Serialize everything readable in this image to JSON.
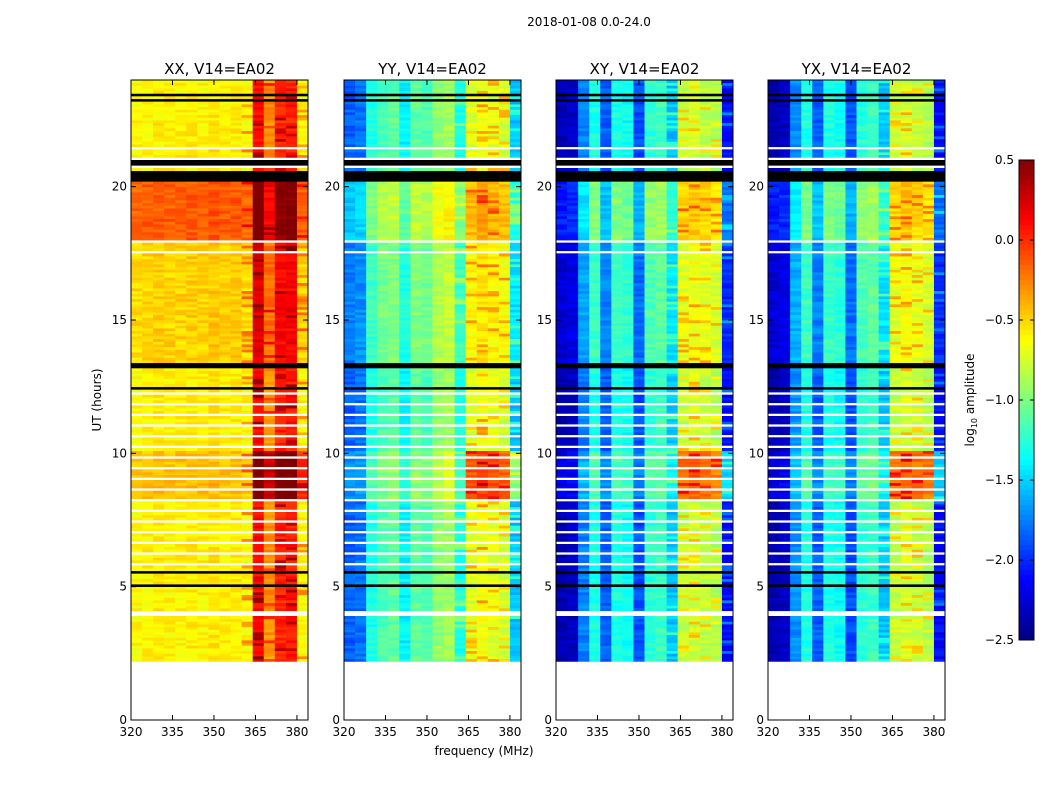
{
  "chart_data": {
    "type": "heatmap",
    "suptitle": "2018-01-08 0.0-24.0",
    "xlabel": "frequency (MHz)",
    "ylabel": "UT (hours)",
    "xlim": [
      320,
      384
    ],
    "ylim": [
      0,
      24
    ],
    "xticks": [
      320,
      335,
      350,
      365,
      380
    ],
    "yticks": [
      0,
      5,
      10,
      15,
      20
    ],
    "data_time_range": [
      2.2,
      24
    ],
    "time_bin_hours": 0.1,
    "freq_bins_mhz": [
      320,
      324,
      328,
      332,
      336,
      340,
      344,
      348,
      352,
      356,
      360,
      364,
      368,
      372,
      376,
      380
    ],
    "panels": [
      {
        "title": "XX, V14=EA02",
        "profile": [
          -0.62,
          -0.6,
          -0.58,
          -0.6,
          -0.6,
          -0.58,
          -0.6,
          -0.56,
          -0.6,
          -0.58,
          -0.62,
          0.12,
          -0.3,
          0.02,
          0.05,
          -0.6
        ]
      },
      {
        "title": "YY, V14=EA02",
        "profile": [
          -1.85,
          -1.8,
          -1.3,
          -1.15,
          -1.1,
          -1.4,
          -1.1,
          -1.15,
          -0.95,
          -0.9,
          -1.3,
          -0.72,
          -0.65,
          -0.7,
          -0.75,
          -1.55
        ]
      },
      {
        "title": "XY, V14=EA02",
        "profile": [
          -2.35,
          -2.3,
          -1.75,
          -1.3,
          -1.85,
          -1.3,
          -1.35,
          -1.9,
          -1.25,
          -1.2,
          -1.55,
          -0.8,
          -0.75,
          -0.8,
          -0.85,
          -2.1
        ]
      },
      {
        "title": "YX, V14=EA02",
        "profile": [
          -2.35,
          -2.3,
          -1.7,
          -1.3,
          -1.85,
          -1.3,
          -1.35,
          -1.9,
          -1.25,
          -1.2,
          -1.55,
          -0.8,
          -0.75,
          -0.8,
          -0.85,
          -2.1
        ]
      }
    ],
    "time_offsets": [
      {
        "start": 21.4,
        "end": 24,
        "offset": 0.0
      },
      {
        "start": 18.0,
        "end": 20.2,
        "offset": 0.3
      },
      {
        "start": 13.4,
        "end": 18.0,
        "offset": 0.1
      },
      {
        "start": 10.1,
        "end": 13.2,
        "offset": 0.0
      },
      {
        "start": 8.3,
        "end": 10.1,
        "offset": 0.15
      },
      {
        "start": 2.2,
        "end": 8.3,
        "offset": 0.0
      }
    ],
    "rfi_boost": {
      "start": 8.3,
      "end": 10.1,
      "min_freq": 364,
      "offset": 0.45
    },
    "flagged_black": [
      [
        23.45,
        23.55
      ],
      [
        23.2,
        23.27
      ],
      [
        21.3,
        21.35
      ],
      [
        20.85,
        21.05
      ],
      [
        20.2,
        20.65
      ],
      [
        18.8,
        18.85
      ],
      [
        16.2,
        16.25
      ],
      [
        15.1,
        15.15
      ],
      [
        14.7,
        14.75
      ],
      [
        14.4,
        14.45
      ],
      [
        13.2,
        13.45
      ],
      [
        12.45,
        12.5
      ],
      [
        5.55,
        5.6
      ],
      [
        5.0,
        5.1
      ],
      [
        2.3,
        2.35
      ]
    ],
    "missing_white": [
      [
        21.45,
        21.55
      ],
      [
        21.05,
        21.15
      ],
      [
        20.7,
        20.8
      ],
      [
        17.9,
        18.0
      ],
      [
        17.5,
        17.6
      ],
      [
        12.2,
        12.3
      ],
      [
        11.8,
        11.9
      ],
      [
        11.4,
        11.5
      ],
      [
        11.0,
        11.1
      ],
      [
        10.6,
        10.7
      ],
      [
        10.2,
        10.3
      ],
      [
        9.8,
        9.9
      ],
      [
        9.4,
        9.5
      ],
      [
        9.0,
        9.1
      ],
      [
        8.6,
        8.7
      ],
      [
        8.2,
        8.3
      ],
      [
        7.8,
        7.9
      ],
      [
        7.4,
        7.5
      ],
      [
        7.0,
        7.1
      ],
      [
        6.6,
        6.7
      ],
      [
        6.2,
        6.3
      ],
      [
        5.8,
        5.9
      ],
      [
        3.95,
        4.1
      ]
    ],
    "colorbar": {
      "label": "log10 amplitude",
      "label_base": "log",
      "label_sub": "10",
      "label_rest": " amplitude",
      "vmin": -2.5,
      "vmax": 0.5,
      "ticks": [
        "0.5",
        "0.0",
        "−0.5",
        "−1.0",
        "−1.5",
        "−2.0",
        "−2.5"
      ],
      "tick_values": [
        0.5,
        0,
        -0.5,
        -1,
        -1.5,
        -2,
        -2.5
      ],
      "colormap": "jet"
    }
  }
}
